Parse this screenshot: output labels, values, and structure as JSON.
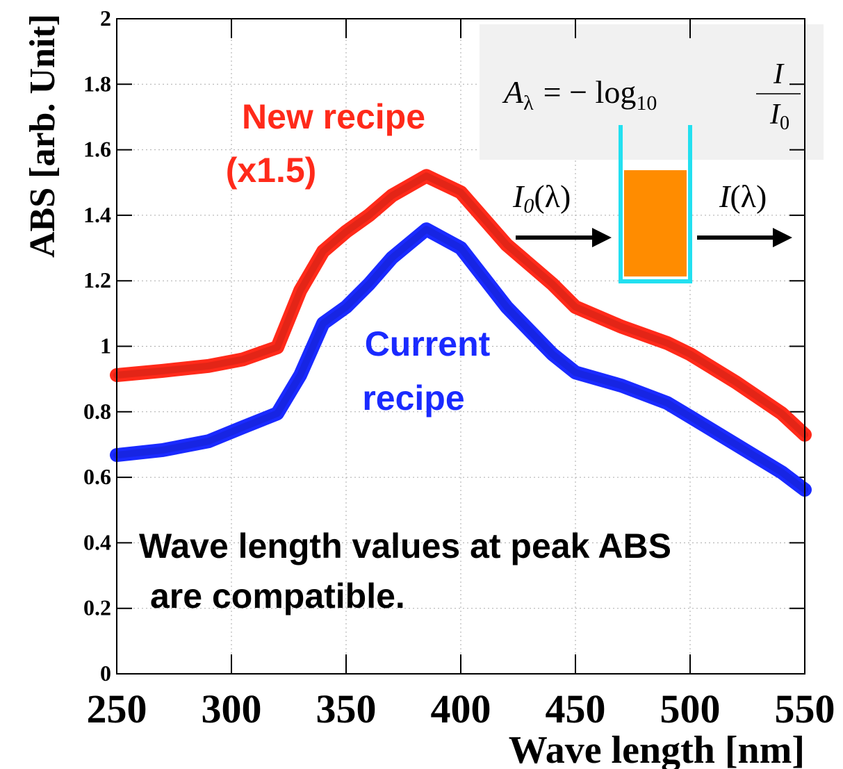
{
  "chart_data": {
    "type": "line",
    "x_label": "Wave length [nm]",
    "y_label": "ABS [arb. Unit]",
    "x": [
      250,
      270,
      290,
      305,
      320,
      330,
      340,
      350,
      360,
      370,
      385,
      400,
      420,
      440,
      450,
      470,
      490,
      500,
      520,
      540,
      550
    ],
    "series": [
      {
        "name": [
          "New recipe",
          "(x1.5)"
        ],
        "color": "#ff2a1a",
        "values": [
          0.912,
          0.925,
          0.94,
          0.96,
          0.997,
          1.17,
          1.29,
          1.35,
          1.4,
          1.46,
          1.52,
          1.47,
          1.31,
          1.19,
          1.12,
          1.06,
          1.01,
          0.976,
          0.89,
          0.795,
          0.73
        ]
      },
      {
        "name": [
          "Current",
          "recipe"
        ],
        "color": "#1a2aff",
        "values": [
          0.668,
          0.683,
          0.71,
          0.753,
          0.795,
          0.912,
          1.07,
          1.12,
          1.19,
          1.27,
          1.357,
          1.3,
          1.12,
          0.976,
          0.92,
          0.88,
          0.827,
          0.785,
          0.7,
          0.615,
          0.562
        ]
      }
    ],
    "xlim": [
      250,
      550
    ],
    "xticks": [
      250,
      300,
      350,
      400,
      450,
      500,
      550
    ],
    "ylim": [
      0,
      2
    ],
    "yticks": [
      0,
      0.2,
      0.4,
      0.6,
      0.8,
      1,
      1.2,
      1.4,
      1.6,
      1.8,
      2
    ],
    "grid": true,
    "annotations": {
      "note": [
        "Wave length values at peak ABS",
        "are compatible."
      ],
      "formula": {
        "lhs": "A",
        "lhs_sub": "λ",
        "op": "= − log",
        "op_sub": "10",
        "num": "I",
        "den": "I",
        "den_sub": "0"
      },
      "incident": {
        "main": "I",
        "sub": "0",
        "arg": "(λ)"
      },
      "transmitted": {
        "main": "I",
        "arg": "(λ)"
      }
    }
  }
}
